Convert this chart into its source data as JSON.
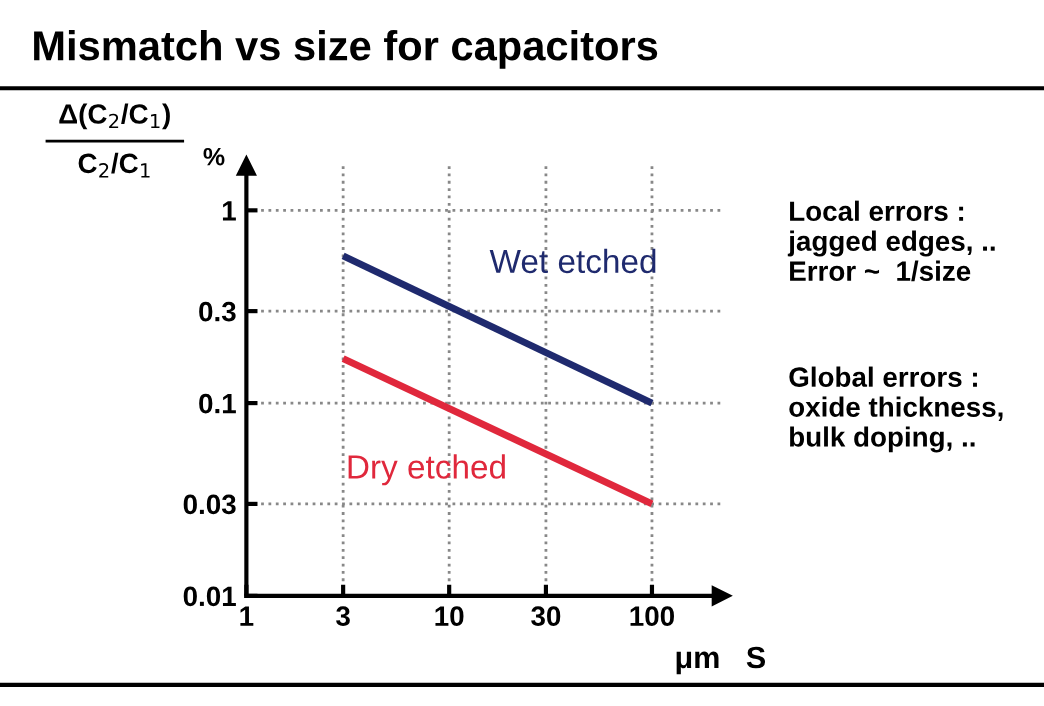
{
  "chart_data": {
    "type": "line",
    "title": "Mismatch vs size for capacitors",
    "ylabel": "Δ(C$_{2}$/C$_{1}$)\nC$_{2}$/C$_{1}$",
    "xlabel": "μm   S",
    "annotations": [
      "%",
      "Local errors :\njagged edges, ..\nError ~  1/size",
      "Global errors :\noxide thickness,\nbulk doping, .."
    ],
    "x": [
      3,
      100
    ],
    "series": [
      {
        "name": "Wet etched",
        "color": "#1f2a6e",
        "values": [
          0.58,
          0.1
        ]
      },
      {
        "name": "Dry etched",
        "color": "#e0283c",
        "values": [
          0.17,
          0.03
        ]
      }
    ],
    "log": "xy",
    "xlim": [
      1,
      220
    ],
    "ylim": [
      0.01,
      1.7
    ],
    "xticks": [
      1,
      3,
      10,
      30,
      100
    ],
    "yticks": [
      0.01,
      0.03,
      0.1,
      0.3,
      1
    ],
    "grid": true,
    "line_style": "solid",
    "marker": "none"
  }
}
